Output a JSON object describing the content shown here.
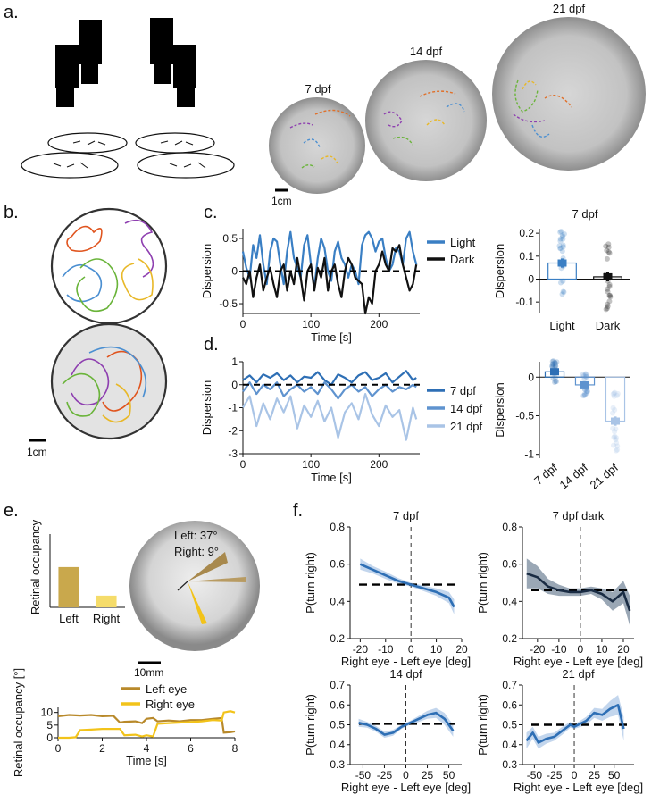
{
  "panels": {
    "a": {
      "label": "a.",
      "arenas": [
        {
          "title": "7 dpf"
        },
        {
          "title": "14 dpf"
        },
        {
          "title": "21 dpf"
        }
      ],
      "scale_label": "1cm"
    },
    "b": {
      "label": "b.",
      "scale_label": "1cm"
    },
    "c": {
      "label": "c.",
      "bar_title": "7 dpf"
    },
    "d": {
      "label": "d."
    },
    "e": {
      "label": "e.",
      "left_angle": "Left: 37°",
      "right_angle": "Right: 9°",
      "scale_label": "10mm"
    },
    "f": {
      "label": "f."
    }
  },
  "chart_data": [
    {
      "id": "c-trace",
      "type": "line",
      "xlabel": "Time [s]",
      "ylabel": "Dispersion",
      "xlim": [
        0,
        260
      ],
      "ylim": [
        -0.65,
        0.65
      ],
      "xticks": [
        "0",
        "100",
        "200"
      ],
      "xtick_values": [
        0,
        100,
        200
      ],
      "yticks": [
        "-0.5",
        "0",
        "0.5"
      ],
      "ytick_values": [
        -0.5,
        0,
        0.5
      ],
      "reference_line": 0,
      "series": [
        {
          "name": "Light",
          "color": "#3a7fc4",
          "x": [
            0,
            5,
            10,
            15,
            20,
            25,
            30,
            35,
            40,
            45,
            50,
            55,
            60,
            65,
            70,
            75,
            80,
            85,
            90,
            95,
            100,
            105,
            110,
            115,
            120,
            125,
            130,
            135,
            140,
            145,
            150,
            155,
            160,
            165,
            170,
            175,
            180,
            185,
            190,
            195,
            200,
            205,
            210,
            215,
            220,
            225,
            230,
            235,
            240,
            245,
            250,
            255
          ],
          "values": [
            0.3,
            0.05,
            -0.1,
            0.4,
            0.2,
            0.55,
            0.1,
            -0.2,
            0.3,
            0.5,
            0.45,
            0.1,
            -0.2,
            0.3,
            0.6,
            0.2,
            0.05,
            -0.1,
            0.4,
            0.55,
            0.1,
            -0.25,
            0.2,
            0.5,
            0.35,
            0.0,
            -0.15,
            0.3,
            0.45,
            0.2,
            0.1,
            -0.1,
            0.1,
            0.0,
            -0.2,
            0.4,
            0.55,
            0.6,
            0.5,
            0.3,
            0.45,
            0.5,
            0.2,
            0.0,
            0.1,
            0.35,
            0.3,
            0.1,
            0.5,
            0.6,
            0.3,
            0.1
          ]
        },
        {
          "name": "Dark",
          "color": "#111111",
          "x": [
            0,
            5,
            10,
            15,
            20,
            25,
            30,
            35,
            40,
            45,
            50,
            55,
            60,
            65,
            70,
            75,
            80,
            85,
            90,
            95,
            100,
            105,
            110,
            115,
            120,
            125,
            130,
            135,
            140,
            145,
            150,
            155,
            160,
            165,
            170,
            175,
            180,
            185,
            190,
            195,
            200,
            205,
            210,
            215,
            220,
            225,
            230,
            235,
            240,
            245,
            250,
            255
          ],
          "values": [
            -0.1,
            -0.2,
            0.0,
            -0.4,
            -0.1,
            0.1,
            -0.3,
            -0.1,
            0.05,
            -0.2,
            -0.4,
            0.0,
            0.1,
            -0.3,
            0.0,
            -0.2,
            0.2,
            -0.1,
            -0.45,
            0.0,
            0.1,
            -0.3,
            0.05,
            -0.1,
            0.2,
            -0.3,
            0.0,
            0.1,
            -0.2,
            -0.4,
            0.0,
            0.2,
            0.1,
            -0.1,
            -0.15,
            -0.2,
            -0.65,
            -0.4,
            -0.5,
            0.0,
            0.1,
            0.3,
            0.1,
            0.0,
            0.35,
            0.3,
            0.4,
            0.1,
            -0.1,
            -0.3,
            -0.2,
            0.1
          ]
        }
      ]
    },
    {
      "id": "c-bars",
      "type": "bar",
      "title": "7 dpf",
      "ylabel": "Dispersion",
      "categories": [
        "Light",
        "Dark"
      ],
      "values": [
        0.07,
        0.01
      ],
      "errors": [
        0.02,
        0.02
      ],
      "colors": [
        "#3a7fc4",
        "#111111"
      ],
      "ylim": [
        -0.15,
        0.22
      ],
      "yticks": [
        "-0.1",
        "0",
        "0.1",
        "0.2"
      ],
      "ytick_values": [
        -0.1,
        0,
        0.1,
        0.2
      ]
    },
    {
      "id": "d-trace",
      "type": "line",
      "xlabel": "Time [s]",
      "ylabel": "Dispersion",
      "xlim": [
        0,
        260
      ],
      "ylim": [
        -3,
        1
      ],
      "xticks": [
        "0",
        "100",
        "200"
      ],
      "xtick_values": [
        0,
        100,
        200
      ],
      "yticks": [
        "-3",
        "-2",
        "-1",
        "0",
        "1"
      ],
      "ytick_values": [
        -3,
        -2,
        -1,
        0,
        1
      ],
      "reference_line": 0,
      "series": [
        {
          "name": "7 dpf",
          "color": "#2e6fb5",
          "x": [
            0,
            10,
            20,
            30,
            40,
            50,
            60,
            70,
            80,
            90,
            100,
            110,
            120,
            130,
            140,
            150,
            160,
            170,
            180,
            190,
            200,
            210,
            220,
            230,
            240,
            250,
            255
          ],
          "values": [
            0.2,
            0.4,
            0.1,
            0.45,
            0.3,
            0.5,
            0.2,
            0.4,
            0.1,
            0.35,
            0.3,
            0.55,
            0.2,
            0.0,
            0.45,
            0.3,
            0.1,
            0.4,
            0.55,
            0.2,
            0.3,
            0.5,
            0.1,
            0.35,
            0.6,
            0.2,
            0.3
          ]
        },
        {
          "name": "14 dpf",
          "color": "#5f93cf",
          "x": [
            0,
            10,
            20,
            30,
            40,
            50,
            60,
            70,
            80,
            90,
            100,
            110,
            120,
            130,
            140,
            150,
            160,
            170,
            180,
            190,
            200,
            210,
            220,
            230,
            240,
            250,
            255
          ],
          "values": [
            -0.3,
            0.1,
            -0.4,
            0.0,
            -0.2,
            0.1,
            -0.5,
            -0.2,
            0.0,
            -0.3,
            -0.1,
            -0.4,
            0.1,
            -0.2,
            -0.6,
            -0.2,
            0.0,
            -0.3,
            -0.1,
            -0.5,
            -0.2,
            0.0,
            -0.3,
            -0.1,
            -0.2,
            0.0,
            -0.1
          ]
        },
        {
          "name": "21 dpf",
          "color": "#a9c4e6",
          "x": [
            0,
            10,
            20,
            30,
            40,
            50,
            60,
            70,
            80,
            90,
            100,
            110,
            120,
            130,
            140,
            150,
            160,
            170,
            180,
            190,
            200,
            210,
            220,
            230,
            240,
            250,
            255
          ],
          "values": [
            -1.0,
            -0.5,
            -1.8,
            -0.8,
            -1.5,
            -0.6,
            -1.2,
            -0.5,
            -1.9,
            -0.9,
            -1.4,
            -0.7,
            -1.6,
            -1.0,
            -2.3,
            -1.2,
            -0.8,
            -1.5,
            -0.4,
            -1.3,
            -1.8,
            -0.9,
            -1.4,
            -1.1,
            -2.4,
            -1.0,
            -1.5
          ]
        }
      ]
    },
    {
      "id": "d-bars",
      "type": "bar",
      "ylabel": "Dispersion",
      "categories": [
        "7 dpf",
        "14 dpf",
        "21 dpf"
      ],
      "values": [
        0.07,
        -0.1,
        -0.57
      ],
      "errors": [
        0.02,
        0.02,
        0.06
      ],
      "colors": [
        "#2e6fb5",
        "#5f93cf",
        "#a9c4e6"
      ],
      "ylim": [
        -1.05,
        0.2
      ],
      "yticks": [
        "-1",
        "-0.5",
        "0"
      ],
      "ytick_values": [
        -1,
        -0.5,
        0
      ]
    },
    {
      "id": "e-bars",
      "type": "bar",
      "ylabel": "Retinal occupancy",
      "categories": [
        "Left",
        "Right"
      ],
      "values": [
        0.55,
        0.16
      ],
      "colors": [
        "#c9a84c",
        "#f5dc6a"
      ]
    },
    {
      "id": "e-trace",
      "type": "line",
      "xlabel": "Time [s]",
      "ylabel": "Retinal occupancy [°]",
      "xlim": [
        0,
        8
      ],
      "ylim": [
        0,
        12
      ],
      "xticks": [
        "0",
        "2",
        "4",
        "6",
        "8"
      ],
      "xtick_values": [
        0,
        2,
        4,
        6,
        8
      ],
      "yticks": [
        "0",
        "5",
        "10"
      ],
      "ytick_values": [
        0,
        5,
        10
      ],
      "series": [
        {
          "name": "Left eye",
          "color": "#b8892a",
          "x": [
            0,
            0.5,
            1,
            1.5,
            2,
            2.5,
            2.8,
            3,
            3.5,
            3.8,
            4,
            4.3,
            4.5,
            5,
            5.5,
            6,
            6.5,
            7,
            7.4,
            7.5,
            7.8,
            8
          ],
          "values": [
            8.5,
            9,
            8.8,
            9,
            8.5,
            8.7,
            6,
            6.3,
            6.5,
            5.8,
            7.5,
            7.8,
            6.5,
            6.8,
            6.5,
            7,
            7,
            7.5,
            7.8,
            2,
            2.2,
            2.5
          ]
        },
        {
          "name": "Right eye",
          "color": "#f2c31a",
          "x": [
            0,
            0.5,
            0.8,
            1,
            1.5,
            2,
            2.8,
            3,
            3.5,
            3.8,
            4,
            4.3,
            4.5,
            5,
            5.5,
            6,
            6.5,
            7,
            7.4,
            7.5,
            7.8,
            8
          ],
          "values": [
            0,
            0,
            0.2,
            3,
            3.2,
            3.5,
            3.5,
            1,
            1.2,
            0.5,
            1,
            0.5,
            5.5,
            5.8,
            6,
            6.2,
            6.5,
            7,
            6.8,
            10,
            10.5,
            10
          ]
        }
      ]
    },
    {
      "id": "f-1",
      "type": "line",
      "title": "7 dpf",
      "xlabel": "Right eye - Left eye [deg]",
      "ylabel": "P(turn right)",
      "xlim": [
        -24,
        20
      ],
      "ylim": [
        0.2,
        0.8
      ],
      "xticks": [
        "-20",
        "-10",
        "0",
        "10",
        "20"
      ],
      "xtick_values": [
        -20,
        -10,
        0,
        10,
        20
      ],
      "yticks": [
        "0.2",
        "0.4",
        "0.6",
        "0.8"
      ],
      "ytick_values": [
        0.2,
        0.4,
        0.6,
        0.8
      ],
      "chance": 0.49,
      "series": [
        {
          "color": "#2e6fb5",
          "band": "#a9c4e6",
          "x": [
            -20,
            -15,
            -10,
            -5,
            0,
            5,
            10,
            15,
            17
          ],
          "values": [
            0.6,
            0.57,
            0.54,
            0.51,
            0.49,
            0.47,
            0.45,
            0.42,
            0.37
          ],
          "err": [
            0.03,
            0.02,
            0.02,
            0.015,
            0.01,
            0.015,
            0.02,
            0.03,
            0.04
          ]
        }
      ]
    },
    {
      "id": "f-2",
      "type": "line",
      "title": "7 dpf dark",
      "xlabel": "Right eye - Left eye [deg]",
      "ylabel": "P(turn right)",
      "xlim": [
        -27,
        25
      ],
      "ylim": [
        0.2,
        0.8
      ],
      "xticks": [
        "-20",
        "-10",
        "0",
        "10",
        "20"
      ],
      "xtick_values": [
        -20,
        -10,
        0,
        10,
        20
      ],
      "yticks": [
        "0.2",
        "0.4",
        "0.6",
        "0.8"
      ],
      "ytick_values": [
        0.2,
        0.4,
        0.6,
        0.8
      ],
      "chance": 0.46,
      "series": [
        {
          "color": "#1a2c44",
          "band": "#6f8196",
          "x": [
            -25,
            -20,
            -15,
            -10,
            -5,
            0,
            5,
            10,
            15,
            20,
            23
          ],
          "values": [
            0.55,
            0.53,
            0.48,
            0.46,
            0.45,
            0.45,
            0.46,
            0.44,
            0.4,
            0.45,
            0.35
          ],
          "err": [
            0.08,
            0.06,
            0.04,
            0.03,
            0.02,
            0.02,
            0.02,
            0.03,
            0.05,
            0.06,
            0.08
          ]
        }
      ]
    },
    {
      "id": "f-3",
      "type": "line",
      "title": "14 dpf",
      "xlabel": "Right eye - Left eye [deg]",
      "ylabel": "P(turn right)",
      "xlim": [
        -65,
        65
      ],
      "ylim": [
        0.3,
        0.7
      ],
      "xticks": [
        "-50",
        "-25",
        "0",
        "25",
        "50"
      ],
      "xtick_values": [
        -50,
        -25,
        0,
        25,
        50
      ],
      "yticks": [
        "0.3",
        "0.4",
        "0.5",
        "0.6",
        "0.7"
      ],
      "ytick_values": [
        0.3,
        0.4,
        0.5,
        0.6,
        0.7
      ],
      "chance": 0.505,
      "series": [
        {
          "color": "#2e6fb5",
          "band": "#a9c4e6",
          "x": [
            -55,
            -45,
            -35,
            -25,
            -15,
            -5,
            0,
            5,
            15,
            25,
            35,
            45,
            55
          ],
          "values": [
            0.51,
            0.5,
            0.48,
            0.45,
            0.46,
            0.49,
            0.5,
            0.51,
            0.53,
            0.55,
            0.56,
            0.53,
            0.47
          ],
          "err": [
            0.02,
            0.015,
            0.015,
            0.015,
            0.015,
            0.01,
            0.01,
            0.01,
            0.015,
            0.02,
            0.025,
            0.03,
            0.03
          ]
        }
      ]
    },
    {
      "id": "f-4",
      "type": "line",
      "title": "21 dpf",
      "xlabel": "Right eye - Left eye [deg]",
      "ylabel": "P(turn right)",
      "xlim": [
        -65,
        75
      ],
      "ylim": [
        0.3,
        0.7
      ],
      "xticks": [
        "-50",
        "-25",
        "0",
        "25",
        "50"
      ],
      "xtick_values": [
        -50,
        -25,
        0,
        25,
        50
      ],
      "yticks": [
        "0.3",
        "0.4",
        "0.5",
        "0.6",
        "0.7"
      ],
      "ytick_values": [
        0.3,
        0.4,
        0.5,
        0.6,
        0.7
      ],
      "chance": 0.5,
      "series": [
        {
          "color": "#2e6fb5",
          "band": "#a9c4e6",
          "x": [
            -60,
            -52,
            -45,
            -35,
            -25,
            -15,
            -5,
            0,
            5,
            15,
            25,
            35,
            45,
            55,
            62
          ],
          "values": [
            0.42,
            0.46,
            0.41,
            0.43,
            0.44,
            0.47,
            0.5,
            0.49,
            0.5,
            0.52,
            0.56,
            0.55,
            0.58,
            0.6,
            0.48
          ],
          "err": [
            0.04,
            0.03,
            0.03,
            0.025,
            0.02,
            0.02,
            0.015,
            0.01,
            0.015,
            0.02,
            0.025,
            0.03,
            0.04,
            0.05,
            0.06
          ]
        }
      ]
    }
  ]
}
